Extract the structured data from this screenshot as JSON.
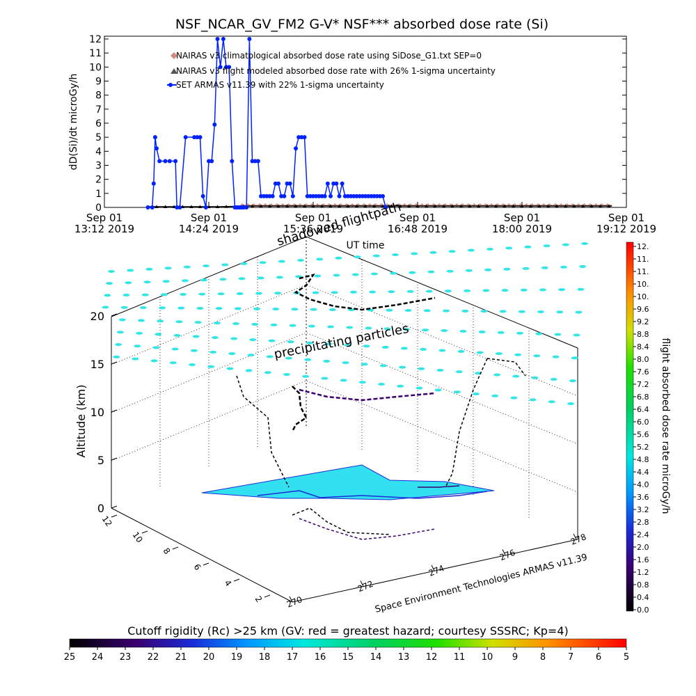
{
  "chart_data": [
    {
      "type": "line",
      "title": "NSF_NCAR_GV_FM2 G-V* NSF*** absorbed dose rate (Si)",
      "xlabel": "UT time",
      "ylabel": "dD(Si)/dt microGy/h",
      "ylim": [
        0,
        12
      ],
      "yticks": [
        "0",
        "1",
        "2",
        "3",
        "4",
        "5",
        "6",
        "7",
        "8",
        "9",
        "10",
        "11",
        "12"
      ],
      "xticks": [
        {
          "top": "Sep 01",
          "bottom": "13:12 2019"
        },
        {
          "top": "Sep 01",
          "bottom": "14:24 2019"
        },
        {
          "top": "Sep 01",
          "bottom": "15:36 2019"
        },
        {
          "top": "Sep 01",
          "bottom": "16:48 2019"
        },
        {
          "top": "Sep 01",
          "bottom": "18:00 2019"
        },
        {
          "top": "Sep 01",
          "bottom": "19:12 2019"
        }
      ],
      "xlim_minutes": [
        0,
        360
      ],
      "legend_position": "top-left",
      "series": [
        {
          "name": "NAIRAS v3 climatological absorbed dose rate using SiDose_G1.txt SEP=0",
          "color": "#d08a80",
          "marker": "diamond",
          "x": [
            95,
            140,
            200,
            260,
            320,
            350
          ],
          "y": [
            0.15,
            0.15,
            0.15,
            0.15,
            0.15,
            0.15
          ]
        },
        {
          "name": "NAIRAS v3 flight modeled absorbed dose rate with 26% 1-sigma uncertainty",
          "color": "#000000",
          "marker": "triangle",
          "x": [
            30,
            60,
            80,
            100,
            140,
            200,
            240,
            280,
            320,
            350
          ],
          "y": [
            0.05,
            0.05,
            0.05,
            0.1,
            0.1,
            0.1,
            0.1,
            0.1,
            0.1,
            0.1
          ]
        },
        {
          "name": "SET ARMAS v11.39 with 22% 1-sigma uncertainty",
          "color": "#0022ff",
          "marker": "circle",
          "x": [
            30,
            33,
            34,
            35,
            36,
            38,
            42,
            45,
            49,
            50,
            52,
            56,
            62,
            64,
            66,
            68,
            70,
            72,
            74,
            76,
            78,
            80,
            82,
            84,
            86,
            88,
            90,
            91,
            92,
            93,
            94,
            95,
            96,
            98,
            100,
            102,
            104,
            106,
            108,
            110,
            112,
            114,
            116,
            118,
            120,
            122,
            124,
            126,
            128,
            130,
            132,
            134,
            136,
            138,
            140,
            142,
            144,
            146,
            148,
            150,
            152,
            154,
            156,
            158,
            160,
            162,
            164,
            166,
            168,
            170,
            172,
            174,
            176,
            178,
            180,
            182,
            184,
            186,
            188,
            190,
            192,
            194
          ],
          "y": [
            0,
            0,
            1.7,
            5,
            4.2,
            3.3,
            3.3,
            3.3,
            3.3,
            0,
            0,
            5,
            5,
            5,
            5,
            0.8,
            0,
            3.3,
            3.3,
            5.9,
            12,
            10,
            12,
            10,
            10,
            3.3,
            0,
            0,
            0,
            0,
            0,
            0,
            0,
            0,
            12,
            3.3,
            3.3,
            3.3,
            0.8,
            0.8,
            0.8,
            0.8,
            0.8,
            1.7,
            1.7,
            0.8,
            0.8,
            1.7,
            1.7,
            0.8,
            4.2,
            5,
            5,
            5,
            0.8,
            0.8,
            0.8,
            0.8,
            0.8,
            0.8,
            0.8,
            1.7,
            0.8,
            1.7,
            1.7,
            0.8,
            1.7,
            0.8,
            0.8,
            0.8,
            0.8,
            0.8,
            0.8,
            0.8,
            0.8,
            0.8,
            0.8,
            0.8,
            0.8,
            0.8,
            0.8,
            0
          ]
        }
      ]
    },
    {
      "type": "other",
      "annotations": [
        "shadowed flightpath",
        "precipitating particles"
      ],
      "zlabel": "Altitude (km)",
      "zticks": [
        "0",
        "5",
        "10",
        "15",
        "20"
      ],
      "xticks": [
        "270",
        "272",
        "274",
        "276",
        "278"
      ],
      "yticks": [
        "2",
        "4",
        "6",
        "8",
        "10",
        "12"
      ],
      "footer": "Space Environment Technologies ARMAS v11.39"
    }
  ],
  "colorbar_right": {
    "title": "flight absorbed dose rate microGy/h",
    "ticks": [
      "0.0",
      "0.4",
      "0.8",
      "1.2",
      "1.6",
      "2.0",
      "2.4",
      "2.8",
      "3.2",
      "3.6",
      "4.0",
      "4.4",
      "4.8",
      "5.2",
      "5.6",
      "6.0",
      "6.4",
      "6.8",
      "7.2",
      "7.6",
      "8.0",
      "8.4",
      "8.8",
      "9.2",
      "9.6",
      "10.",
      "10.",
      "11.",
      "11.",
      "12."
    ]
  },
  "colorbar_bottom": {
    "title": "Cutoff rigidity (Rc) >25 km (GV: red = greatest hazard; courtesy SSSRC; Kp=4)",
    "ticks": [
      "25",
      "24",
      "23",
      "22",
      "21",
      "20",
      "19",
      "18",
      "17",
      "16",
      "15",
      "14",
      "13",
      "12",
      "11",
      "10",
      "9",
      "8",
      "7",
      "6",
      "5"
    ]
  }
}
